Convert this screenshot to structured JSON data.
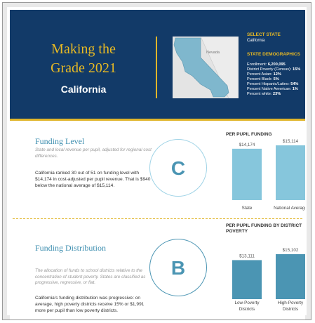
{
  "header": {
    "title_line1": "Making the",
    "title_line2": "Grade 2021",
    "state": "California",
    "map_label": "Nevada",
    "select_label": "SELECT STATE",
    "select_value": "California",
    "demographics_title": "STATE DEMOGRAPHICS",
    "demographics": [
      {
        "label": "Enrollment:",
        "value": "6,200,095"
      },
      {
        "label": "District Poverty (Census):",
        "value": "15%"
      },
      {
        "label": "Percent Asian:",
        "value": "12%"
      },
      {
        "label": "Percent Black:",
        "value": "5%"
      },
      {
        "label": "Percent Hispanic/Latino:",
        "value": "54%"
      },
      {
        "label": "Percent Native American:",
        "value": "1%"
      },
      {
        "label": "Percent white:",
        "value": "23%"
      }
    ]
  },
  "sections": [
    {
      "title": "Funding Level",
      "description": "State and local revenue per pupil, adjusted for regional cost differences.",
      "body": "California ranked 30 out of 51 on funding level with $14,174 in cost-adjusted per pupil revenue. That is $940 below the national average of $15,114.",
      "grade": "C",
      "chart": {
        "type": "bar",
        "title": "PER PUPIL FUNDING",
        "categories": [
          "State",
          "National Average"
        ],
        "values": [
          14174,
          15114
        ],
        "value_labels": [
          "$14,174",
          "$15,114"
        ],
        "color": "#86c6dc"
      }
    },
    {
      "title": "Funding Distribution",
      "description": "The allocation of funds to school districts relative to the concentration of student poverty. States are classified as progressive, regressive, or flat.",
      "body": "California's funding distribution was progressive: on average, high poverty districts receive 15% or $1,991 more per pupil than low poverty districts.",
      "grade": "B",
      "chart": {
        "type": "bar",
        "title": "PER PUPIL FUNDING BY DISTRICT POVERTY",
        "categories": [
          "Low-Poverty Districts",
          "High-Poverty Districts"
        ],
        "values": [
          13111,
          15102
        ],
        "value_labels": [
          "$13,111",
          "$15,102"
        ],
        "color": "#4b95b3"
      }
    }
  ]
}
